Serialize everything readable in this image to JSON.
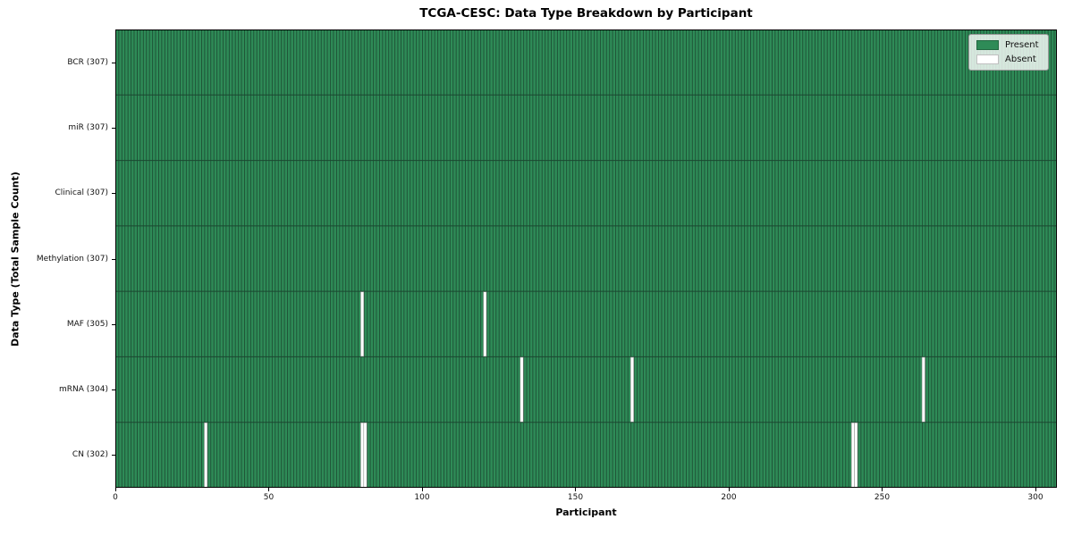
{
  "title": "TCGA-CESC: Data Type Breakdown by Participant",
  "chart_data": {
    "type": "heatmap",
    "title": "TCGA-CESC: Data Type Breakdown by Participant",
    "xlabel": "Participant",
    "ylabel": "Data Type (Total Sample Count)",
    "n_participants": 307,
    "xlim": [
      0,
      307
    ],
    "x_ticks": [
      0,
      50,
      100,
      150,
      200,
      250,
      300
    ],
    "grid": false,
    "legend_position": "upper right",
    "rows": [
      {
        "label": "BCR (307)",
        "data_type": "BCR",
        "present_count": 307,
        "absent_participants": []
      },
      {
        "label": "miR (307)",
        "data_type": "miR",
        "present_count": 307,
        "absent_participants": []
      },
      {
        "label": "Clinical (307)",
        "data_type": "Clinical",
        "present_count": 307,
        "absent_participants": []
      },
      {
        "label": "Methylation (307)",
        "data_type": "Methylation",
        "present_count": 307,
        "absent_participants": []
      },
      {
        "label": "MAF (305)",
        "data_type": "MAF",
        "present_count": 305,
        "absent_participants": [
          80,
          120
        ]
      },
      {
        "label": "mRNA (304)",
        "data_type": "mRNA",
        "present_count": 304,
        "absent_participants": [
          132,
          168,
          263
        ]
      },
      {
        "label": "CN (302)",
        "data_type": "CN",
        "present_count": 302,
        "absent_participants": [
          29,
          80,
          81,
          240,
          241
        ]
      }
    ],
    "legend": [
      {
        "label": "Present",
        "color": "#2e8b57"
      },
      {
        "label": "Absent",
        "color": "#ffffff"
      }
    ],
    "colors": {
      "present": "#2e8b57",
      "absent": "#ffffff",
      "bar_edge": "#1b4730",
      "plot_border": "#000000",
      "absent_edge": "#888888"
    }
  }
}
